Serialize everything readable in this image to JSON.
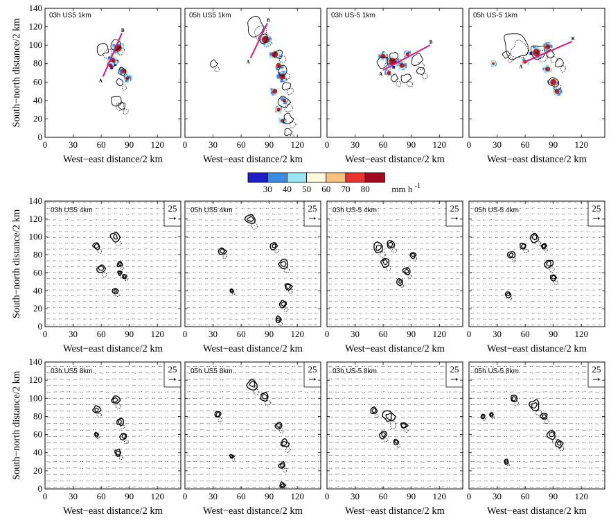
{
  "chart_data": {
    "type": "contour-map-grid",
    "x_axis_label": "West−east distance/2 km",
    "y_axis_label": "South−north distance/2 km",
    "x_ticks": [
      0,
      30,
      60,
      90,
      120
    ],
    "y_ticks": [
      0,
      20,
      40,
      60,
      80,
      100,
      120,
      140
    ],
    "xlim": [
      0,
      145
    ],
    "ylim": [
      0,
      140
    ],
    "colorbar": {
      "levels": [
        30,
        40,
        50,
        60,
        70,
        80
      ],
      "unit": "mm h",
      "unit_exponent": "-1",
      "colors": [
        "#1e1ec8",
        "#3c8ce6",
        "#9be6f5",
        "#fffadc",
        "#fac37d",
        "#eb3232",
        "#a5091e"
      ]
    },
    "vector_reference": "25",
    "panels": [
      {
        "row": 0,
        "title": "03h US5 1km",
        "ab_line": {
          "A": [
            62,
            66
          ],
          "B": [
            82,
            113
          ]
        }
      },
      {
        "row": 0,
        "title": "05h US5 1km",
        "ab_line": {
          "A": [
            70,
            86
          ],
          "B": [
            88,
            124
          ]
        }
      },
      {
        "row": 0,
        "title": "03h US-5 1km",
        "ab_line": {
          "A": [
            60,
            73
          ],
          "B": [
            110,
            100
          ]
        }
      },
      {
        "row": 0,
        "title": "05h US-5 1km",
        "ab_line": {
          "A": [
            58,
            81
          ],
          "B": [
            110,
            104
          ]
        }
      },
      {
        "row": 1,
        "title": "03h US5 4km"
      },
      {
        "row": 1,
        "title": "05h US5 4km"
      },
      {
        "row": 1,
        "title": "03h US-5 4km"
      },
      {
        "row": 1,
        "title": "05h US-5 4km"
      },
      {
        "row": 2,
        "title": "03h US5 8km"
      },
      {
        "row": 2,
        "title": "05h US5 8km"
      },
      {
        "row": 2,
        "title": "03h US-5 8km"
      },
      {
        "row": 2,
        "title": "05h US-5 8km"
      }
    ],
    "point_label_a": "A",
    "point_label_b": "B"
  }
}
